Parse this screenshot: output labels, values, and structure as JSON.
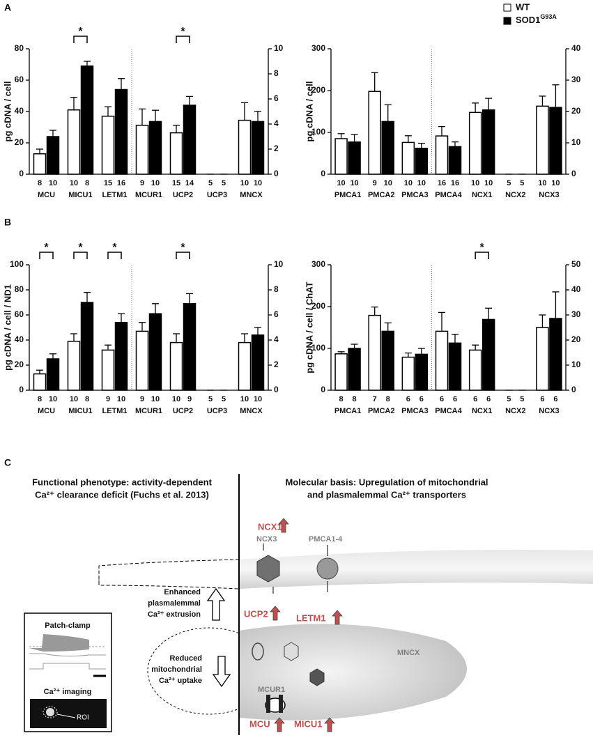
{
  "panels": [
    "A",
    "B",
    "C"
  ],
  "legend": {
    "series": [
      {
        "name": "WT",
        "color": "#ffffff"
      },
      {
        "name": "SOD1",
        "superscript": "G93A",
        "color": "#000000"
      }
    ]
  },
  "significance_label": "*",
  "chart_data": [
    {
      "type": "bar",
      "ylabel": "pg cDNA / cell",
      "ylim": [
        0,
        80
      ],
      "yticks": [
        0,
        20,
        40,
        60,
        80
      ],
      "y2lim": [
        0,
        10
      ],
      "y2ticks": [
        0,
        2,
        4,
        6,
        8,
        10
      ],
      "groups": [
        {
          "axis": "y",
          "categories": [
            "MCU",
            "MICU1",
            "LETM1"
          ],
          "significant": [
            false,
            true,
            false
          ],
          "series": [
            {
              "values": [
                13,
                41,
                37
              ],
              "errors": [
                3,
                8,
                6
              ],
              "n": [
                8,
                10,
                15
              ]
            },
            {
              "values": [
                24,
                69,
                54
              ],
              "errors": [
                4,
                3,
                7
              ],
              "n": [
                10,
                8,
                16
              ]
            }
          ]
        },
        {
          "axis": "y2",
          "categories": [
            "MCUR1",
            "UCP2",
            "UCP3",
            "MNCX"
          ],
          "significant": [
            false,
            true,
            false,
            false
          ],
          "series": [
            {
              "values": [
                3.9,
                3.3,
                0,
                4.3
              ],
              "errors": [
                1.3,
                0.6,
                0,
                1.4
              ],
              "n": [
                9,
                15,
                5,
                10
              ]
            },
            {
              "values": [
                4.2,
                5.5,
                0,
                4.2
              ],
              "errors": [
                0.9,
                0.7,
                0,
                0.8
              ],
              "n": [
                10,
                14,
                5,
                10
              ]
            }
          ]
        }
      ]
    },
    {
      "type": "bar",
      "ylabel": "pg cDNA / cell",
      "ylim": [
        0,
        300
      ],
      "yticks": [
        0,
        100,
        200,
        300
      ],
      "y2lim": [
        0,
        40
      ],
      "y2ticks": [
        0,
        10,
        20,
        30,
        40
      ],
      "groups": [
        {
          "axis": "y",
          "categories": [
            "PMCA1",
            "PMCA2",
            "PMCA3"
          ],
          "significant": [
            false,
            false,
            false
          ],
          "series": [
            {
              "values": [
                85,
                198,
                76
              ],
              "errors": [
                12,
                45,
                16
              ],
              "n": [
                10,
                9,
                10
              ]
            },
            {
              "values": [
                77,
                126,
                62
              ],
              "errors": [
                18,
                40,
                12
              ],
              "n": [
                10,
                10,
                10
              ]
            }
          ]
        },
        {
          "axis": "y2",
          "categories": [
            "PMCA4",
            "NCX1",
            "NCX2",
            "NCX3"
          ],
          "significant": [
            false,
            false,
            false,
            false
          ],
          "series": [
            {
              "values": [
                12.2,
                19.7,
                0,
                21.7
              ],
              "errors": [
                3,
                3,
                0,
                3.2
              ],
              "n": [
                16,
                10,
                5,
                10
              ]
            },
            {
              "values": [
                8.8,
                20.5,
                0,
                21.3
              ],
              "errors": [
                1.5,
                3.7,
                0,
                7.2
              ],
              "n": [
                16,
                10,
                5,
                10
              ]
            }
          ]
        }
      ]
    },
    {
      "type": "bar",
      "ylabel": "pg cDNA / cell / ND1",
      "ylim": [
        0,
        100
      ],
      "yticks": [
        0,
        20,
        40,
        60,
        80,
        100
      ],
      "y2lim": [
        0,
        10
      ],
      "y2ticks": [
        0,
        2,
        4,
        6,
        8,
        10
      ],
      "groups": [
        {
          "axis": "y",
          "categories": [
            "MCU",
            "MICU1",
            "LETM1"
          ],
          "significant": [
            true,
            true,
            true
          ],
          "series": [
            {
              "values": [
                13,
                39,
                32
              ],
              "errors": [
                3,
                6,
                4
              ],
              "n": [
                8,
                10,
                9
              ]
            },
            {
              "values": [
                25,
                70,
                54
              ],
              "errors": [
                4,
                8,
                7
              ],
              "n": [
                10,
                8,
                10
              ]
            }
          ]
        },
        {
          "axis": "y2",
          "categories": [
            "MCUR1",
            "UCP2",
            "UCP3",
            "MNCX"
          ],
          "significant": [
            false,
            true,
            false,
            false
          ],
          "series": [
            {
              "values": [
                4.7,
                3.8,
                0,
                3.8
              ],
              "errors": [
                0.7,
                0.7,
                0,
                0.7
              ],
              "n": [
                9,
                10,
                5,
                10
              ]
            },
            {
              "values": [
                6.1,
                6.9,
                0,
                4.4
              ],
              "errors": [
                0.8,
                0.8,
                0,
                0.6
              ],
              "n": [
                10,
                9,
                5,
                10
              ]
            }
          ]
        }
      ]
    },
    {
      "type": "bar",
      "ylabel": "pg cDNA / cell / ChAT",
      "ylim": [
        0,
        300
      ],
      "yticks": [
        0,
        100,
        200,
        300
      ],
      "y2lim": [
        0,
        50
      ],
      "y2ticks": [
        0,
        10,
        20,
        30,
        40,
        50
      ],
      "groups": [
        {
          "axis": "y",
          "categories": [
            "PMCA1",
            "PMCA2",
            "PMCA3"
          ],
          "significant": [
            false,
            false,
            false
          ],
          "series": [
            {
              "values": [
                87,
                179,
                79
              ],
              "errors": [
                5,
                20,
                10
              ],
              "n": [
                8,
                7,
                6
              ]
            },
            {
              "values": [
                100,
                141,
                86
              ],
              "errors": [
                10,
                20,
                14
              ],
              "n": [
                8,
                8,
                6
              ]
            }
          ]
        },
        {
          "axis": "y2",
          "categories": [
            "PMCA4",
            "NCX1",
            "NCX2",
            "NCX3"
          ],
          "significant": [
            false,
            true,
            false,
            false
          ],
          "series": [
            {
              "values": [
                23.5,
                16,
                0,
                25
              ],
              "errors": [
                7.5,
                2,
                0,
                5
              ],
              "n": [
                6,
                6,
                5,
                6
              ]
            },
            {
              "values": [
                18.8,
                28.2,
                0,
                28.6
              ],
              "errors": [
                3.5,
                4.5,
                0,
                10.6
              ],
              "n": [
                6,
                6,
                5,
                6
              ]
            }
          ]
        }
      ]
    }
  ],
  "diagram": {
    "left_heading": [
      "Functional phenotype: activity-dependent",
      "Ca²⁺ clearance deficit (Fuchs et al. 2013)"
    ],
    "right_heading": [
      "Molecular basis: Upregulation of mitochondrial",
      "and plasmalemmal Ca²⁺ transporters"
    ],
    "extrusion": [
      "Enhanced",
      "plasmalemmal",
      "Ca²⁺ extrusion"
    ],
    "uptake": [
      "Reduced",
      "mitochondrial",
      "Ca²⁺ uptake"
    ],
    "ncx1": "NCX1",
    "ncx3": "NCX3",
    "pmca": "PMCA1-4",
    "ucp2": "UCP2",
    "letm1": "LETM1",
    "mncx": "MNCX",
    "mcur1": "MCUR1",
    "mcu": "MCU",
    "micu1": "MICU1",
    "patch_clamp": "Patch-clamp",
    "imaging": "Ca²⁺ imaging",
    "roi": "ROI"
  }
}
